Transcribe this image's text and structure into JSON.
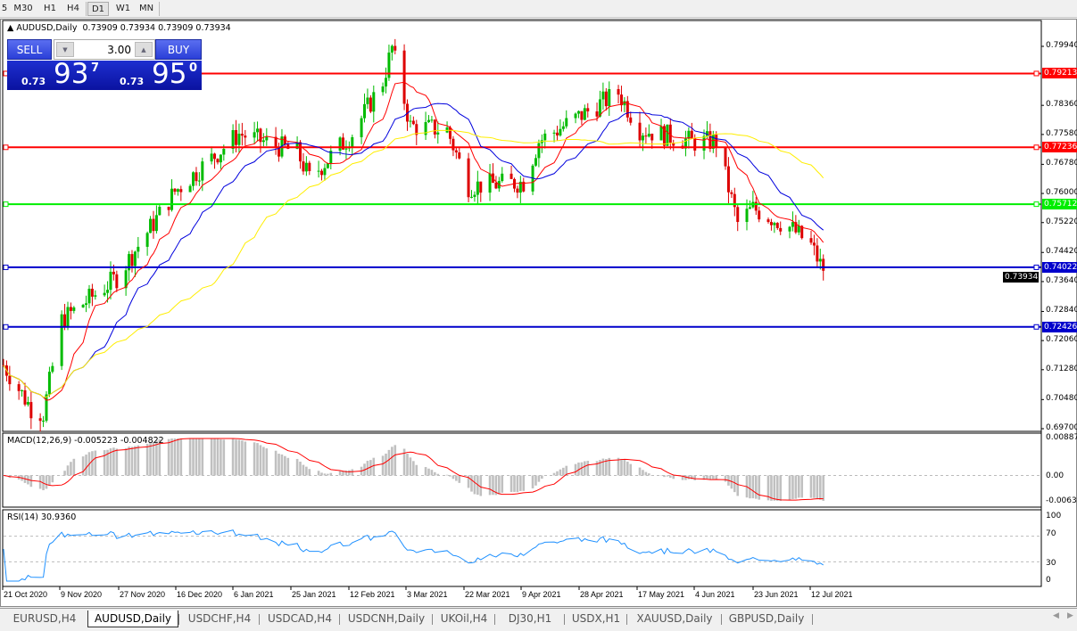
{
  "toolbar": {
    "timeframes": [
      {
        "label": "5"
      },
      {
        "label": "M30"
      },
      {
        "label": "H1"
      },
      {
        "label": "H4"
      },
      {
        "label": "D1",
        "active": true
      },
      {
        "label": "W1"
      },
      {
        "label": "MN"
      }
    ]
  },
  "chart": {
    "title": "AUDUSD,Daily",
    "ohlc": "0.73909 0.73934 0.73909 0.73934"
  },
  "trade_panel": {
    "sell_label": "SELL",
    "buy_label": "BUY",
    "lot": "3.00",
    "sell_prefix": "0.73",
    "sell_big": "93",
    "sell_sup": "7",
    "buy_prefix": "0.73",
    "buy_big": "95",
    "buy_sup": "0"
  },
  "price_axis": {
    "ticks": [
      "0.79940",
      "0.78360",
      "0.77580",
      "0.76780",
      "0.76000",
      "0.75220",
      "0.74420",
      "0.73640",
      "0.72840",
      "0.72060",
      "0.71280",
      "0.70480",
      "0.69700"
    ],
    "range": [
      0.697,
      0.7994
    ]
  },
  "levels": [
    {
      "price": "0.79213",
      "color": "#ff0000"
    },
    {
      "price": "0.77236",
      "color": "#ff0000"
    },
    {
      "price": "0.75712",
      "color": "#00ee00"
    },
    {
      "price": "0.74022",
      "color": "#0000cc"
    },
    {
      "price": "0.72426",
      "color": "#0000cc"
    }
  ],
  "current_price": "0.73934",
  "macd": {
    "label": "MACD(12,26,9) -0.005223 -0.004822",
    "ticks": [
      "0.008871",
      "0.00",
      "-0.00632"
    ]
  },
  "rsi": {
    "label": "RSI(14) 30.9360",
    "ticks": [
      "100",
      "70",
      "30",
      "0"
    ]
  },
  "date_axis": [
    "21 Oct 2020",
    "9 Nov 2020",
    "27 Nov 2020",
    "16 Dec 2020",
    "6 Jan 2021",
    "25 Jan 2021",
    "12 Feb 2021",
    "3 Mar 2021",
    "22 Mar 2021",
    "9 Apr 2021",
    "28 Apr 2021",
    "17 May 2021",
    "4 Jun 2021",
    "23 Jun 2021",
    "12 Jul 2021"
  ],
  "tabs": [
    {
      "label": "EURUSD,H4"
    },
    {
      "label": "AUDUSD,Daily",
      "active": true
    },
    {
      "label": "USDCHF,H4"
    },
    {
      "label": "USDCAD,H4"
    },
    {
      "label": "USDCNH,Daily"
    },
    {
      "label": "UKOil,H4"
    },
    {
      "label": "DJ30,H1"
    },
    {
      "label": "USDX,H1"
    },
    {
      "label": "XAUUSD,Daily"
    },
    {
      "label": "GBPUSD,Daily"
    }
  ],
  "chart_data": {
    "type": "candlestick",
    "symbol": "AUDUSD",
    "timeframe": "Daily",
    "ylim": [
      0.697,
      0.7994
    ],
    "close_path": [
      [
        "2020-10-21",
        0.714
      ],
      [
        "2020-10-30",
        0.7025
      ],
      [
        "2020-11-03",
        0.701
      ],
      [
        "2020-11-09",
        0.726
      ],
      [
        "2020-11-27",
        0.7375
      ],
      [
        "2020-12-16",
        0.7605
      ],
      [
        "2021-01-06",
        0.776
      ],
      [
        "2021-01-25",
        0.771
      ],
      [
        "2021-01-29",
        0.764
      ],
      [
        "2021-02-12",
        0.776
      ],
      [
        "2021-02-22",
        0.79
      ],
      [
        "2021-02-25",
        0.799
      ],
      [
        "2021-03-03",
        0.778
      ],
      [
        "2021-03-15",
        0.777
      ],
      [
        "2021-03-22",
        0.762
      ],
      [
        "2021-04-09",
        0.763
      ],
      [
        "2021-04-14",
        0.774
      ],
      [
        "2021-04-28",
        0.781
      ],
      [
        "2021-05-10",
        0.787
      ],
      [
        "2021-05-17",
        0.7772
      ],
      [
        "2021-06-04",
        0.7737
      ],
      [
        "2021-06-11",
        0.774
      ],
      [
        "2021-06-18",
        0.752
      ],
      [
        "2021-06-23",
        0.756
      ],
      [
        "2021-07-05",
        0.751
      ],
      [
        "2021-07-12",
        0.746
      ],
      [
        "2021-07-16",
        0.7393
      ]
    ],
    "moving_averages": [
      {
        "color": "#ff0000"
      },
      {
        "color": "#0000dd"
      },
      {
        "color": "#ffee00"
      }
    ],
    "bull_color": "#00bb00",
    "bear_color": "#dd0000"
  }
}
